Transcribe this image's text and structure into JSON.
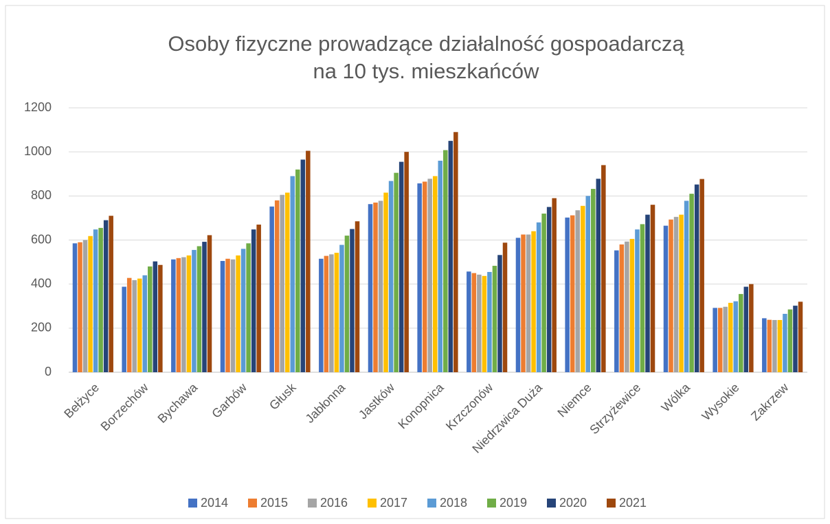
{
  "chart_data": {
    "type": "bar",
    "title": [
      "Osoby fizyczne prowadzące działalność gospoadarczą",
      "na 10 tys. mieszkańców"
    ],
    "categories": [
      "Bełżyce",
      "Borzechów",
      "Bychawa",
      "Garbów",
      "Głusk",
      "Jabłonna",
      "Jastków",
      "Konopnica",
      "Krzczonów",
      "Niedrzwica Duża",
      "Niemce",
      "Strzyżewice",
      "Wólka",
      "Wysokie",
      "Zakrzew"
    ],
    "series": [
      {
        "name": "2014",
        "color": "#4472c4",
        "values": [
          585,
          388,
          512,
          505,
          752,
          515,
          763,
          857,
          457,
          610,
          702,
          553,
          665,
          292,
          245
        ]
      },
      {
        "name": "2015",
        "color": "#ed7d31",
        "values": [
          590,
          428,
          518,
          515,
          780,
          528,
          770,
          865,
          450,
          625,
          712,
          580,
          693,
          292,
          238
        ]
      },
      {
        "name": "2016",
        "color": "#a5a5a5",
        "values": [
          600,
          418,
          522,
          512,
          805,
          535,
          778,
          878,
          443,
          625,
          735,
          593,
          705,
          297,
          237
        ]
      },
      {
        "name": "2017",
        "color": "#ffc000",
        "values": [
          618,
          425,
          530,
          530,
          815,
          542,
          815,
          890,
          437,
          640,
          755,
          605,
          715,
          315,
          237
        ]
      },
      {
        "name": "2018",
        "color": "#5b9bd5",
        "values": [
          648,
          440,
          555,
          560,
          890,
          578,
          868,
          960,
          455,
          680,
          800,
          648,
          778,
          322,
          265
        ]
      },
      {
        "name": "2019",
        "color": "#70ad47",
        "values": [
          655,
          480,
          572,
          585,
          920,
          620,
          905,
          1008,
          483,
          720,
          832,
          672,
          810,
          355,
          285
        ]
      },
      {
        "name": "2020",
        "color": "#264478",
        "values": [
          690,
          503,
          592,
          648,
          965,
          650,
          955,
          1050,
          532,
          750,
          878,
          715,
          852,
          388,
          302
        ]
      },
      {
        "name": "2021",
        "color": "#9e480e",
        "values": [
          710,
          487,
          622,
          670,
          1005,
          685,
          1000,
          1090,
          588,
          790,
          940,
          760,
          877,
          400,
          320
        ]
      }
    ],
    "ylim": [
      0,
      1200
    ],
    "yticks": [
      0,
      200,
      400,
      600,
      800,
      1000,
      1200
    ],
    "grid": true,
    "legend": "bottom"
  }
}
